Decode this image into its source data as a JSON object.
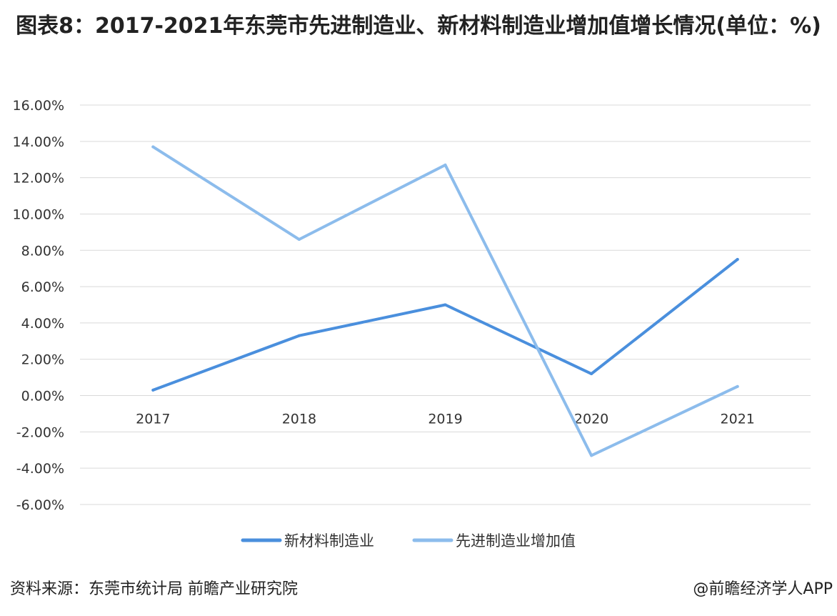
{
  "title": "图表8：2017-2021年东莞市先进制造业、新材料制造业增加值增长情况(单位：%)",
  "footer": {
    "source": "资料来源：东莞市统计局 前瞻产业研究院",
    "brand": "@前瞻经济学人APP"
  },
  "chart_data": {
    "type": "line",
    "categories": [
      "2017",
      "2018",
      "2019",
      "2020",
      "2021"
    ],
    "series": [
      {
        "name": "新材料制造业",
        "values": [
          0.3,
          3.3,
          5.0,
          1.2,
          7.5
        ],
        "color": "#4a8fdd"
      },
      {
        "name": "先进制造业增加值",
        "values": [
          13.7,
          8.6,
          12.7,
          -3.3,
          0.5
        ],
        "color": "#8cbcec"
      }
    ],
    "ylim": [
      -6,
      16
    ],
    "yticks": [
      "-6.00%",
      "-4.00%",
      "-2.00%",
      "0.00%",
      "2.00%",
      "4.00%",
      "6.00%",
      "8.00%",
      "10.00%",
      "12.00%",
      "14.00%",
      "16.00%"
    ],
    "ytick_values": [
      -6,
      -4,
      -2,
      0,
      2,
      4,
      6,
      8,
      10,
      12,
      14,
      16
    ],
    "grid": true,
    "legend": "bottom",
    "xlabel": "",
    "ylabel": ""
  }
}
